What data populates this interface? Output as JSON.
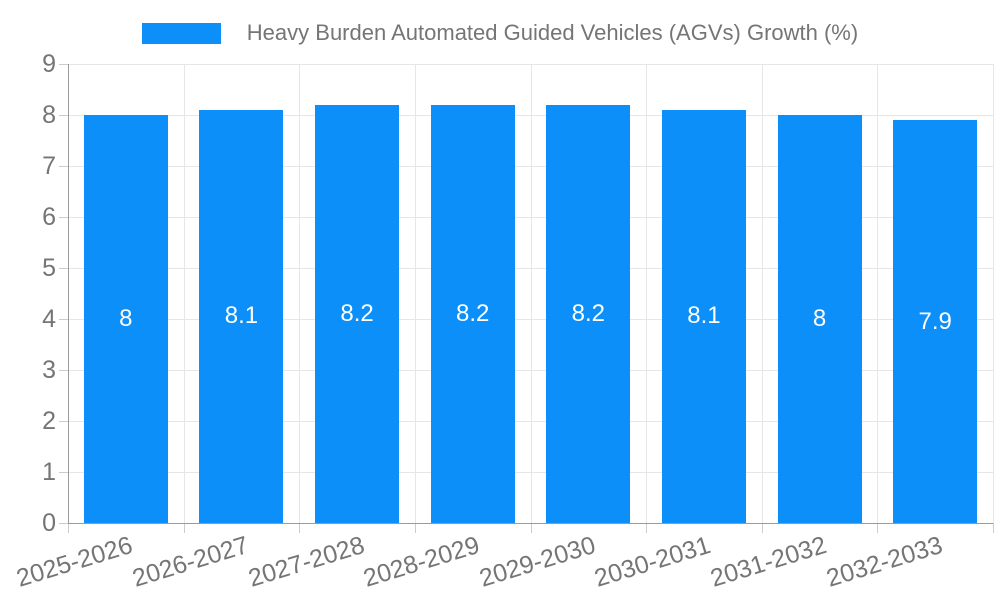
{
  "chart_data": {
    "type": "bar",
    "title": "Heavy Burden Automated Guided Vehicles (AGVs) Growth (%)",
    "legend_position": "top",
    "categories": [
      "2025-2026",
      "2026-2027",
      "2027-2028",
      "2028-2029",
      "2029-2030",
      "2030-2031",
      "2031-2032",
      "2032-2033"
    ],
    "series": [
      {
        "name": "Heavy Burden Automated Guided Vehicles (AGVs) Growth (%)",
        "values": [
          8,
          8.1,
          8.2,
          8.2,
          8.2,
          8.1,
          8,
          7.9
        ]
      }
    ],
    "value_labels": [
      "8",
      "8.1",
      "8.2",
      "8.2",
      "8.2",
      "8.1",
      "8",
      "7.9"
    ],
    "xlabel": "",
    "ylabel": "",
    "ylim": [
      0,
      9
    ],
    "y_ticks": [
      0,
      1,
      2,
      3,
      4,
      5,
      6,
      7,
      8,
      9
    ],
    "grid": true,
    "x_label_rotation_deg": -17
  },
  "colors": {
    "bar": "#0d8ff9",
    "axis_line": "#9a9a9a",
    "gridline": "#e6e6e6",
    "tick_mark": "#cccccc",
    "tick_text": "#757575",
    "title_text": "#757575",
    "value_label_text": "#ffffff",
    "background": "#ffffff"
  }
}
